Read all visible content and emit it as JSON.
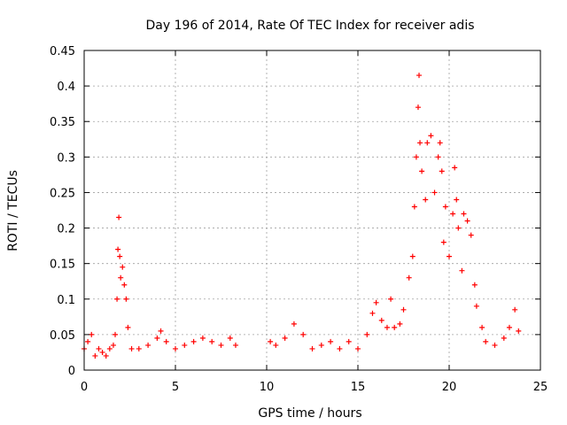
{
  "chart_data": {
    "type": "scatter",
    "title": "Day 196 of 2014, Rate Of TEC Index for receiver adis",
    "xlabel": "GPS time / hours",
    "ylabel": "ROTI / TECUs",
    "xlim": [
      0,
      25
    ],
    "ylim": [
      0,
      0.45
    ],
    "xticks": [
      0,
      5,
      10,
      15,
      20,
      25
    ],
    "xtick_labels": [
      "0",
      "5",
      "10",
      "15",
      "20",
      "25"
    ],
    "yticks": [
      0,
      0.05,
      0.1,
      0.15,
      0.2,
      0.25,
      0.3,
      0.35,
      0.4,
      0.45
    ],
    "ytick_labels": [
      "0",
      "0.05",
      "0.1",
      "0.15",
      "0.2",
      "0.25",
      "0.3",
      "0.35",
      "0.4",
      "0.45"
    ],
    "grid": true,
    "marker": "plus",
    "color": "#ff0000",
    "series": [
      {
        "name": "ROTI",
        "points": [
          [
            0.0,
            0.03
          ],
          [
            0.2,
            0.04
          ],
          [
            0.4,
            0.05
          ],
          [
            0.6,
            0.02
          ],
          [
            0.8,
            0.03
          ],
          [
            1.0,
            0.025
          ],
          [
            1.2,
            0.02
          ],
          [
            1.4,
            0.03
          ],
          [
            1.6,
            0.035
          ],
          [
            1.7,
            0.05
          ],
          [
            1.8,
            0.1
          ],
          [
            1.85,
            0.17
          ],
          [
            1.9,
            0.215
          ],
          [
            1.95,
            0.16
          ],
          [
            2.0,
            0.13
          ],
          [
            2.1,
            0.145
          ],
          [
            2.2,
            0.12
          ],
          [
            2.3,
            0.1
          ],
          [
            2.4,
            0.06
          ],
          [
            2.6,
            0.03
          ],
          [
            3.0,
            0.03
          ],
          [
            3.5,
            0.035
          ],
          [
            4.0,
            0.045
          ],
          [
            4.2,
            0.055
          ],
          [
            4.5,
            0.04
          ],
          [
            5.0,
            0.03
          ],
          [
            5.5,
            0.035
          ],
          [
            6.0,
            0.04
          ],
          [
            6.5,
            0.045
          ],
          [
            7.0,
            0.04
          ],
          [
            7.5,
            0.035
          ],
          [
            8.0,
            0.045
          ],
          [
            8.3,
            0.035
          ],
          [
            10.2,
            0.04
          ],
          [
            10.5,
            0.035
          ],
          [
            11.0,
            0.045
          ],
          [
            11.5,
            0.065
          ],
          [
            12.0,
            0.05
          ],
          [
            12.5,
            0.03
          ],
          [
            13.0,
            0.035
          ],
          [
            13.5,
            0.04
          ],
          [
            14.0,
            0.03
          ],
          [
            14.5,
            0.04
          ],
          [
            15.0,
            0.03
          ],
          [
            15.5,
            0.05
          ],
          [
            15.8,
            0.08
          ],
          [
            16.0,
            0.095
          ],
          [
            16.3,
            0.07
          ],
          [
            16.6,
            0.06
          ],
          [
            16.8,
            0.1
          ],
          [
            17.0,
            0.06
          ],
          [
            17.3,
            0.065
          ],
          [
            17.5,
            0.085
          ],
          [
            17.8,
            0.13
          ],
          [
            18.0,
            0.16
          ],
          [
            18.1,
            0.23
          ],
          [
            18.2,
            0.3
          ],
          [
            18.3,
            0.37
          ],
          [
            18.35,
            0.415
          ],
          [
            18.4,
            0.32
          ],
          [
            18.5,
            0.28
          ],
          [
            18.7,
            0.24
          ],
          [
            18.8,
            0.32
          ],
          [
            19.0,
            0.33
          ],
          [
            19.2,
            0.25
          ],
          [
            19.4,
            0.3
          ],
          [
            19.5,
            0.32
          ],
          [
            19.6,
            0.28
          ],
          [
            19.7,
            0.18
          ],
          [
            19.8,
            0.23
          ],
          [
            20.0,
            0.16
          ],
          [
            20.2,
            0.22
          ],
          [
            20.3,
            0.285
          ],
          [
            20.4,
            0.24
          ],
          [
            20.5,
            0.2
          ],
          [
            20.7,
            0.14
          ],
          [
            20.8,
            0.22
          ],
          [
            21.0,
            0.21
          ],
          [
            21.2,
            0.19
          ],
          [
            21.4,
            0.12
          ],
          [
            21.5,
            0.09
          ],
          [
            21.8,
            0.06
          ],
          [
            22.0,
            0.04
          ],
          [
            22.5,
            0.035
          ],
          [
            23.0,
            0.045
          ],
          [
            23.3,
            0.06
          ],
          [
            23.6,
            0.085
          ],
          [
            23.8,
            0.055
          ]
        ]
      }
    ]
  }
}
